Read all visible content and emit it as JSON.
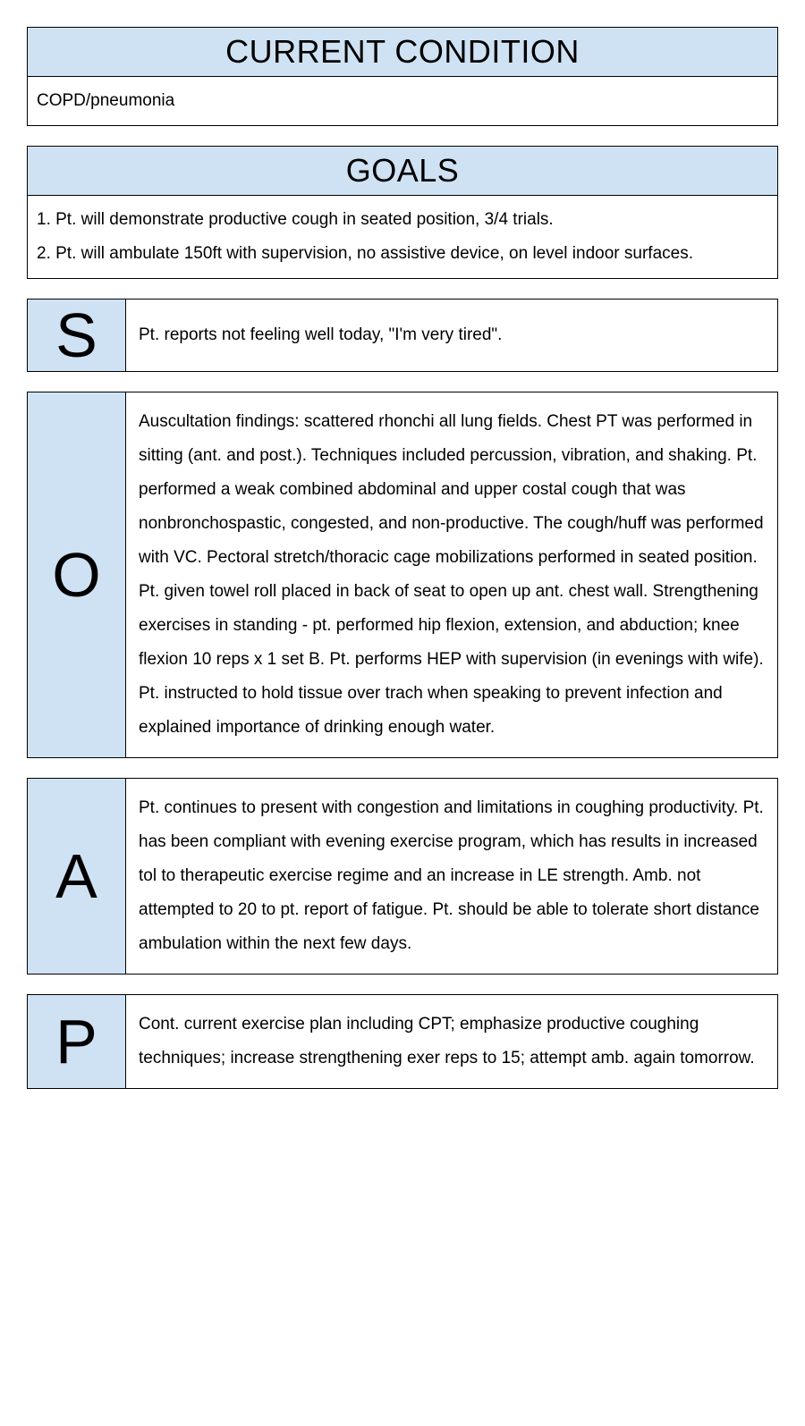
{
  "colors": {
    "header_bg": "#cfe2f3",
    "border": "#000000",
    "text": "#000000",
    "page_bg": "#ffffff"
  },
  "typography": {
    "header_fontsize_pt": 27,
    "body_fontsize_pt": 14,
    "soap_letter_fontsize_pt": 52,
    "font_family": "Arial"
  },
  "condition": {
    "header": "CURRENT CONDITION",
    "body": "COPD/pneumonia"
  },
  "goals": {
    "header": "GOALS",
    "items": [
      "1. Pt. will demonstrate productive cough in seated position, 3/4 trials.",
      "2. Pt. will ambulate 150ft with supervision, no assistive device, on level indoor surfaces."
    ]
  },
  "soap": [
    {
      "letter": "S",
      "text": "Pt. reports not feeling well today, \"I'm very tired\"."
    },
    {
      "letter": "O",
      "text": "Auscultation findings: scattered rhonchi all lung fields. Chest PT was performed in sitting (ant. and post.). Techniques included percussion, vibration, and shaking. Pt. performed a weak combined abdominal and upper costal cough that was nonbronchospastic, congested, and non-productive. The cough/huff was performed with VC. Pectoral stretch/thoracic cage mobilizations performed in seated position. Pt. given towel roll placed in back of seat to open up ant. chest wall. Strengthening exercises in standing - pt. performed hip flexion, extension, and abduction; knee flexion 10 reps x 1 set B. Pt. performs HEP with supervision (in evenings with wife). Pt. instructed to hold tissue over trach when speaking to prevent infection and explained importance of drinking enough water."
    },
    {
      "letter": "A",
      "text": "Pt. continues to present with congestion and limitations in coughing productivity. Pt. has been compliant with evening exercise program, which has results in increased tol to therapeutic exercise regime and an increase in LE strength. Amb. not attempted to 20 to pt. report of fatigue. Pt. should be able to tolerate short distance ambulation within the next few days."
    },
    {
      "letter": "P",
      "text": "Cont. current exercise plan including CPT; emphasize productive coughing techniques; increase strengthening exer reps to 15; attempt amb. again tomorrow."
    }
  ]
}
